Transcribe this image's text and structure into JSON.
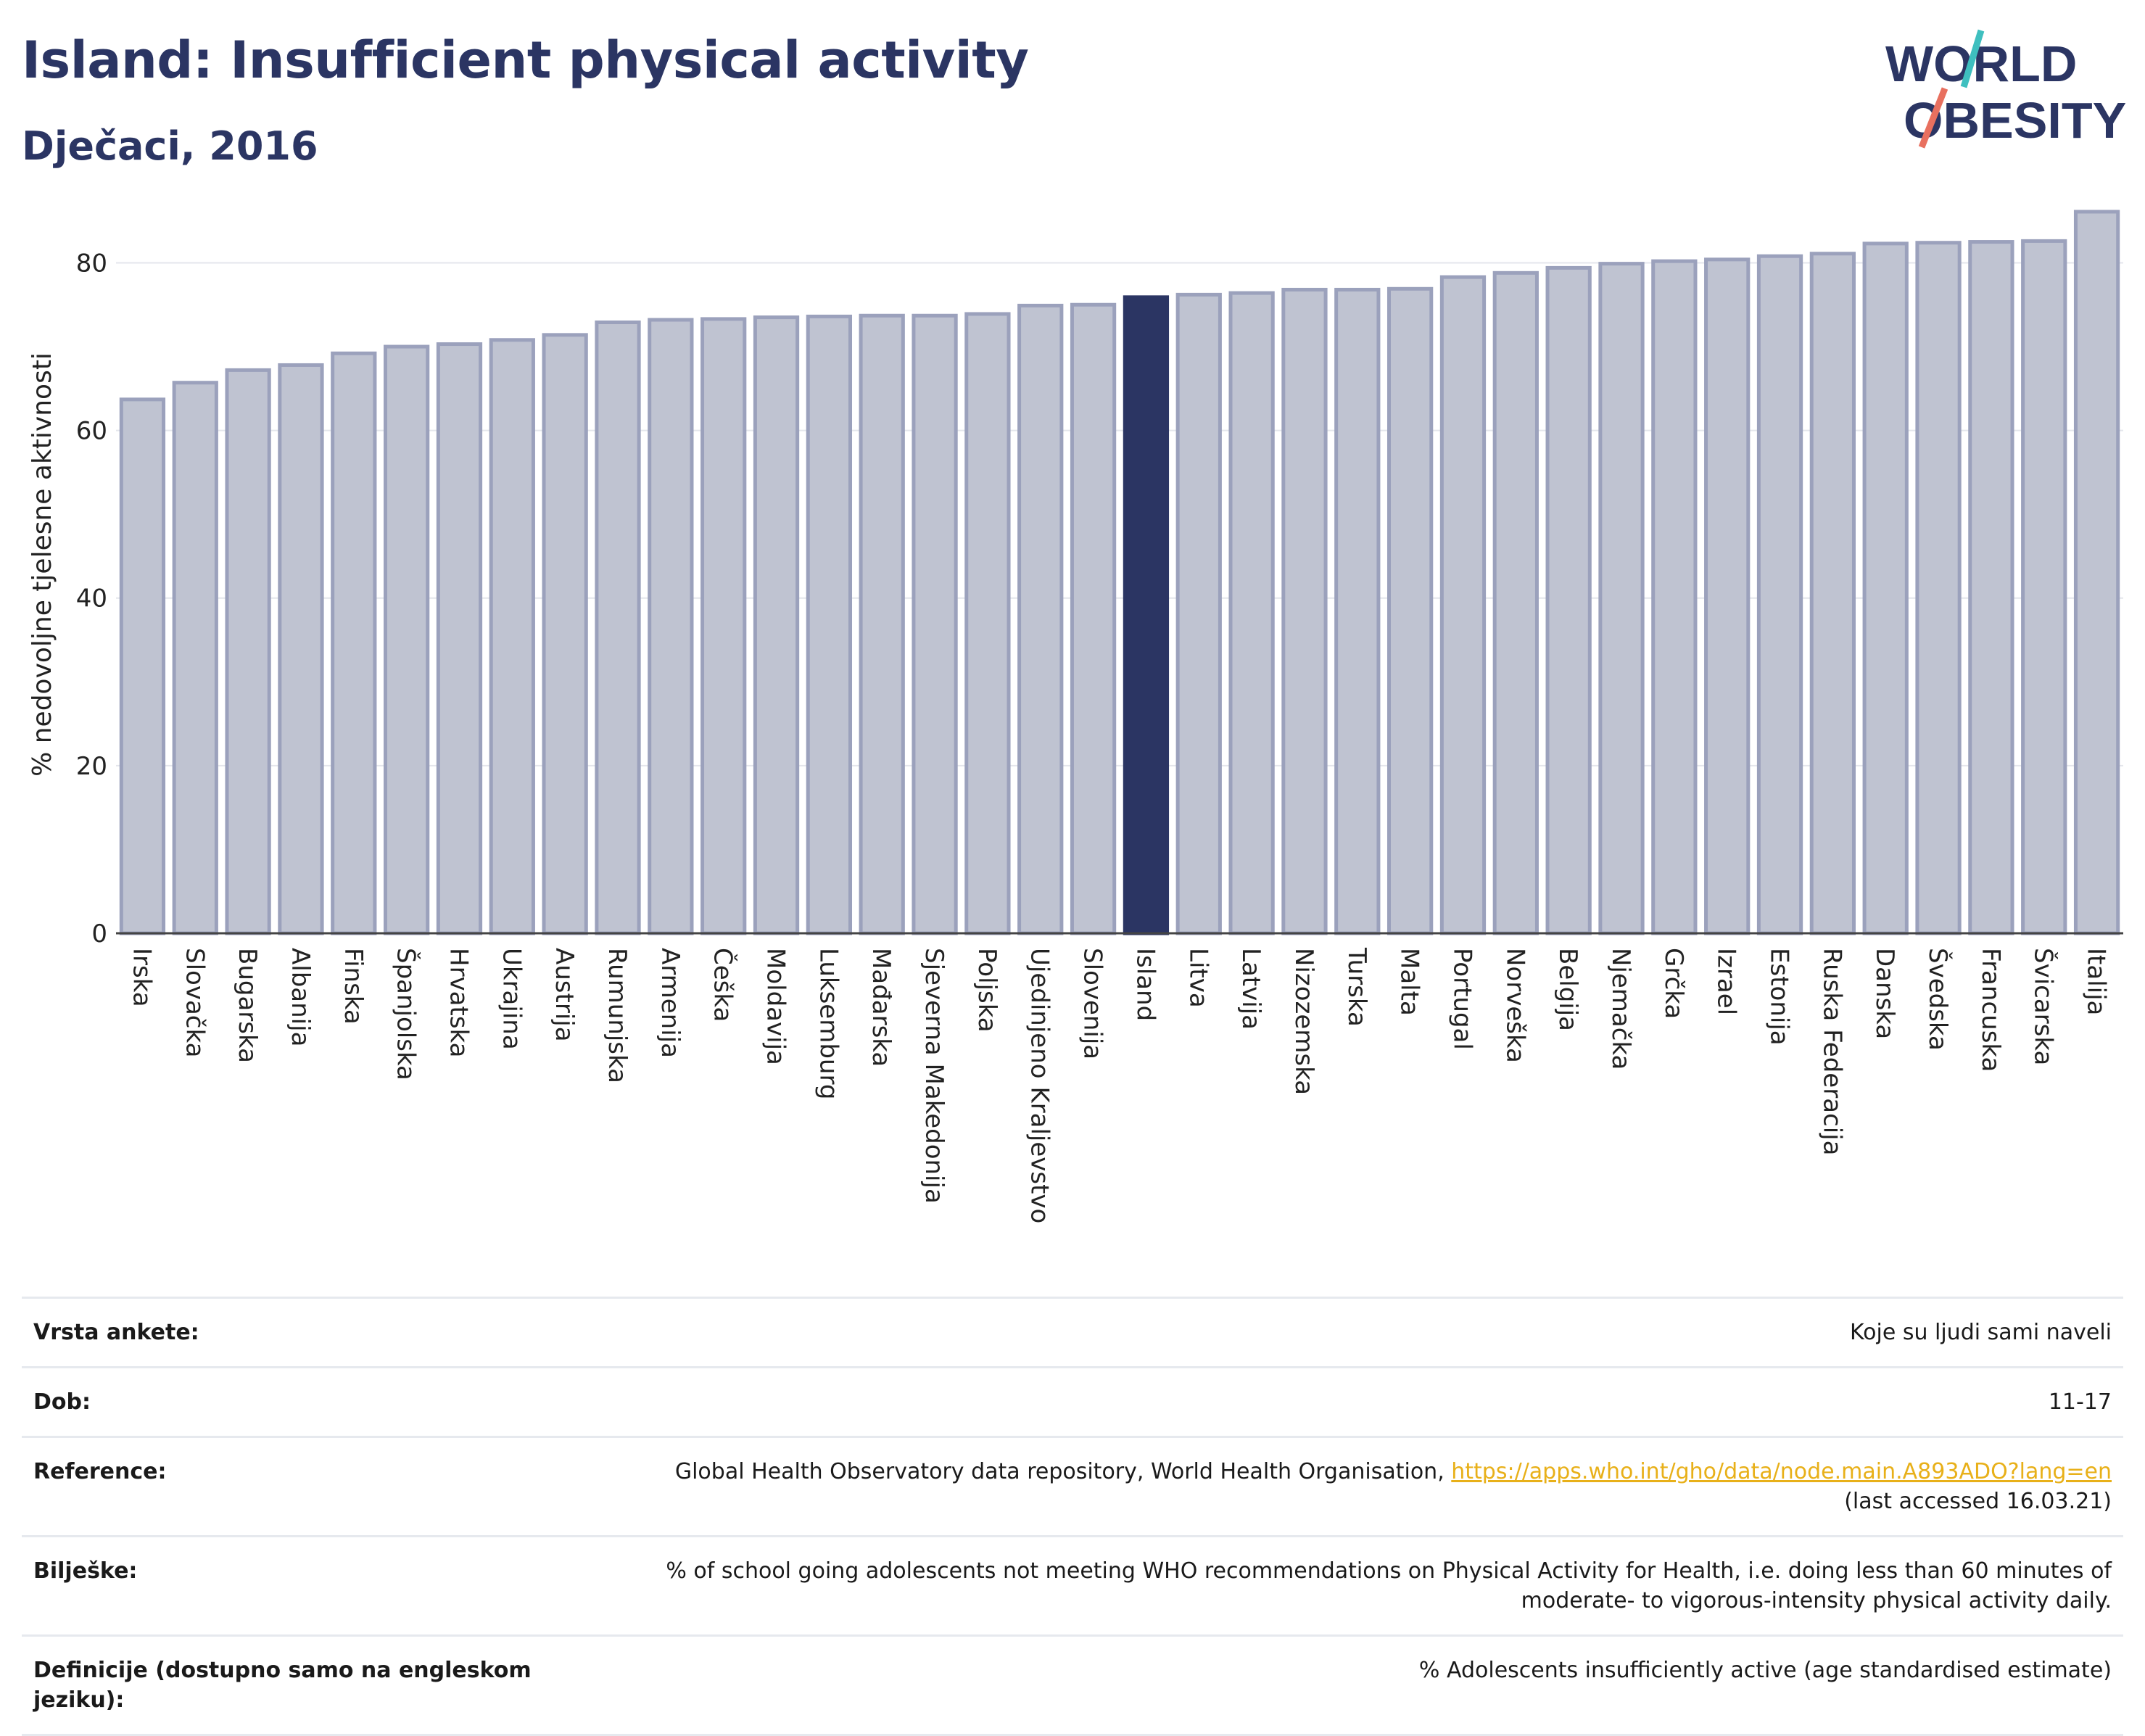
{
  "header": {
    "title": "Island: Insufficient physical activity",
    "subtitle": "Dječaci, 2016",
    "logo_line1": "WORLD",
    "logo_line2": "OBESITY"
  },
  "colors": {
    "bar": "#bfc3d1",
    "bar_border": "#9ba1bc",
    "highlight": "#2b3563",
    "title": "#2b3563",
    "link": "#e8b019",
    "logo_teal": "#3fbfbf",
    "logo_red": "#e8705f"
  },
  "chart_data": {
    "type": "bar",
    "title": "Island: Insufficient physical activity",
    "subtitle": "Dječaci, 2016",
    "xlabel": "",
    "ylabel": "% nedovoljne tjelesne aktivnosti",
    "ylim": [
      0,
      88
    ],
    "yticks": [
      0,
      20,
      40,
      60,
      80
    ],
    "grid": true,
    "highlight": "Island",
    "categories": [
      "Irska",
      "Slovačka",
      "Bugarska",
      "Albanija",
      "Finska",
      "Španjolska",
      "Hrvatska",
      "Ukrajina",
      "Austrija",
      "Rumunjska",
      "Armenija",
      "Češka",
      "Moldavija",
      "Luksemburg",
      "Mađarska",
      "Sjeverna Makedonija",
      "Poljska",
      "Ujedinjeno Kraljevstvo",
      "Slovenija",
      "Island",
      "Litva",
      "Latvija",
      "Nizozemska",
      "Turska",
      "Malta",
      "Portugal",
      "Norveška",
      "Belgija",
      "Njemačka",
      "Grčka",
      "Izrael",
      "Estonija",
      "Ruska Federacija",
      "Danska",
      "Švedska",
      "Francuska",
      "Švicarska",
      "Italija"
    ],
    "values": [
      63.7,
      65.7,
      67.2,
      67.8,
      69.2,
      70.0,
      70.3,
      70.8,
      71.4,
      72.9,
      73.2,
      73.3,
      73.5,
      73.6,
      73.7,
      73.7,
      73.9,
      74.9,
      75.0,
      75.9,
      76.2,
      76.4,
      76.8,
      76.8,
      76.9,
      78.3,
      78.8,
      79.4,
      79.9,
      80.2,
      80.4,
      80.8,
      81.1,
      82.3,
      82.4,
      82.5,
      82.6,
      86.1
    ]
  },
  "meta": [
    {
      "label": "Vrsta ankete:",
      "value": "Koje su ljudi sami naveli"
    },
    {
      "label": "Dob:",
      "value": "11-17"
    },
    {
      "label": "Reference:",
      "value": "Global Health Observatory data repository, World Health Organisation, ",
      "link": "https://apps.who.int/gho/data/node.main.A893ADO?lang=en",
      "suffix": "(last accessed 16.03.21)"
    },
    {
      "label": "Bilješke:",
      "value": "% of school going adolescents not meeting WHO recommendations on Physical Activity for Health, i.e. doing less than 60 minutes of moderate- to vigorous-intensity physical activity daily."
    },
    {
      "label": "Definicije (dostupno samo na engleskom jeziku):",
      "value": "% Adolescents insufficiently active (age standardised estimate)"
    }
  ]
}
